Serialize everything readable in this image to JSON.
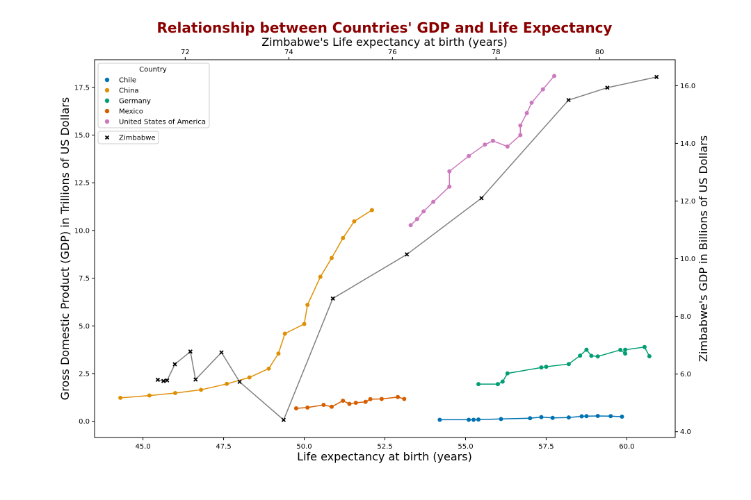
{
  "chart_data": {
    "type": "line",
    "title": "Relationship between Countries' GDP and Life Expectancy",
    "xlabel": "Life expectancy at birth (years)",
    "ylabel": "Gross Domestic Product (GDP) in Trillions of US Dollars",
    "x2label": "Zimbabwe's Life expectancy at birth (years)",
    "y2label": "Zimbabwe's GDP in Billions of US Dollars",
    "xlim": [
      43.5,
      61.5
    ],
    "ylim": [
      -0.85,
      18.95
    ],
    "x2lim": [
      70.25,
      81.46
    ],
    "y2lim": [
      3.8,
      16.9
    ],
    "xticks": [
      45.0,
      47.5,
      50.0,
      52.5,
      55.0,
      57.5,
      60.0
    ],
    "yticks": [
      0.0,
      2.5,
      5.0,
      7.5,
      10.0,
      12.5,
      15.0,
      17.5
    ],
    "x2ticks": [
      72,
      74,
      76,
      78,
      80
    ],
    "y2ticks": [
      4.0,
      6.0,
      8.0,
      10.0,
      12.0,
      14.0,
      16.0
    ],
    "xtick_labels": [
      "45.0",
      "47.5",
      "50.0",
      "52.5",
      "55.0",
      "57.5",
      "60.0"
    ],
    "ytick_labels": [
      "0.0",
      "2.5",
      "5.0",
      "7.5",
      "10.0",
      "12.5",
      "15.0",
      "17.5"
    ],
    "x2tick_labels": [
      "72",
      "74",
      "76",
      "78",
      "80"
    ],
    "y2tick_labels": [
      "4.0",
      "6.0",
      "8.0",
      "10.0",
      "12.0",
      "14.0",
      "16.0"
    ],
    "legend": {
      "title": "Country",
      "placement": "top-left",
      "secondary_entry": "Zimbabwe"
    },
    "series": [
      {
        "name": "Chile",
        "color": "#0072b2",
        "marker": "circle",
        "axis": "primary",
        "points": [
          [
            54.2,
            0.08
          ],
          [
            55.1,
            0.08
          ],
          [
            55.25,
            0.08
          ],
          [
            55.4,
            0.09
          ],
          [
            56.1,
            0.12
          ],
          [
            57.0,
            0.16
          ],
          [
            57.35,
            0.22
          ],
          [
            57.7,
            0.18
          ],
          [
            58.2,
            0.2
          ],
          [
            58.6,
            0.26
          ],
          [
            58.75,
            0.27
          ],
          [
            59.1,
            0.28
          ],
          [
            59.5,
            0.27
          ],
          [
            59.85,
            0.24
          ]
        ]
      },
      {
        "name": "China",
        "color": "#de8f05",
        "marker": "circle",
        "axis": "primary",
        "points": [
          [
            44.3,
            1.23
          ],
          [
            45.2,
            1.35
          ],
          [
            46.0,
            1.48
          ],
          [
            46.8,
            1.65
          ],
          [
            47.6,
            1.96
          ],
          [
            48.3,
            2.3
          ],
          [
            48.9,
            2.76
          ],
          [
            49.2,
            3.55
          ],
          [
            49.4,
            4.59
          ],
          [
            50.0,
            5.1
          ],
          [
            50.1,
            6.1
          ],
          [
            50.5,
            7.57
          ],
          [
            50.85,
            8.56
          ],
          [
            51.2,
            9.6
          ],
          [
            51.55,
            10.48
          ],
          [
            52.1,
            11.07
          ]
        ]
      },
      {
        "name": "Germany",
        "color": "#029e73",
        "marker": "circle",
        "axis": "primary",
        "points": [
          [
            55.4,
            1.95
          ],
          [
            56.0,
            1.95
          ],
          [
            56.15,
            2.08
          ],
          [
            56.3,
            2.51
          ],
          [
            57.35,
            2.82
          ],
          [
            57.5,
            2.86
          ],
          [
            58.2,
            3.0
          ],
          [
            58.55,
            3.44
          ],
          [
            58.75,
            3.75
          ],
          [
            58.9,
            3.43
          ],
          [
            59.1,
            3.4
          ],
          [
            59.8,
            3.74
          ],
          [
            59.95,
            3.55
          ],
          [
            59.95,
            3.75
          ],
          [
            60.55,
            3.89
          ],
          [
            60.7,
            3.41
          ]
        ]
      },
      {
        "name": "Mexico",
        "color": "#d55e00",
        "marker": "circle",
        "axis": "primary",
        "points": [
          [
            49.75,
            0.68
          ],
          [
            50.1,
            0.72
          ],
          [
            50.6,
            0.86
          ],
          [
            50.85,
            0.76
          ],
          [
            51.2,
            1.08
          ],
          [
            51.4,
            0.91
          ],
          [
            51.6,
            0.97
          ],
          [
            51.9,
            1.02
          ],
          [
            52.05,
            1.16
          ],
          [
            52.4,
            1.17
          ],
          [
            52.9,
            1.27
          ],
          [
            53.1,
            1.17
          ]
        ]
      },
      {
        "name": "United States of America",
        "color": "#cc78bc",
        "marker": "circle",
        "axis": "primary",
        "points": [
          [
            53.3,
            10.28
          ],
          [
            53.5,
            10.6
          ],
          [
            53.7,
            11.0
          ],
          [
            54.0,
            11.5
          ],
          [
            54.5,
            12.3
          ],
          [
            54.5,
            13.1
          ],
          [
            55.1,
            13.9
          ],
          [
            55.6,
            14.5
          ],
          [
            55.85,
            14.7
          ],
          [
            56.3,
            14.4
          ],
          [
            56.7,
            15.0
          ],
          [
            56.7,
            15.5
          ],
          [
            56.9,
            16.15
          ],
          [
            57.05,
            16.7
          ],
          [
            57.4,
            17.4
          ],
          [
            57.75,
            18.1
          ]
        ]
      },
      {
        "name": "Zimbabwe",
        "color": "#000000",
        "line_color": "#808080",
        "marker": "x",
        "axis": "secondary",
        "points": [
          [
            71.47,
            5.8
          ],
          [
            71.58,
            5.76
          ],
          [
            71.65,
            5.78
          ],
          [
            71.8,
            6.34
          ],
          [
            72.1,
            6.78
          ],
          [
            72.2,
            5.81
          ],
          [
            72.7,
            6.75
          ],
          [
            73.05,
            5.73
          ],
          [
            73.9,
            4.41
          ],
          [
            74.85,
            8.62
          ],
          [
            76.28,
            10.15
          ],
          [
            77.72,
            12.1
          ],
          [
            79.4,
            15.5
          ],
          [
            80.15,
            15.93
          ],
          [
            81.1,
            16.3
          ]
        ]
      }
    ]
  }
}
